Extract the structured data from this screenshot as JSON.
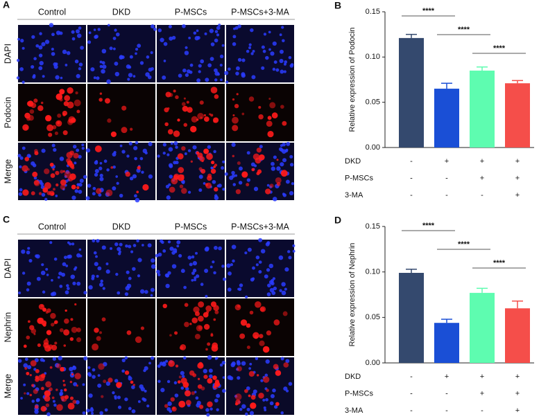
{
  "panels": [
    {
      "label": "A",
      "columns": [
        "Control",
        "DKD",
        "P-MSCs",
        "P-MSCs+3-MA"
      ],
      "rows": [
        "DAPI",
        "Podocin",
        "Merge"
      ]
    },
    {
      "label": "C",
      "columns": [
        "Control",
        "DKD",
        "P-MSCs",
        "P-MSCs+3-MA"
      ],
      "rows": [
        "DAPI",
        "Nephrin",
        "Merge"
      ]
    }
  ],
  "chart_data": [
    {
      "type": "bar",
      "panel_label": "B",
      "ylabel": "Relative expression of Podocin",
      "categories": [
        null,
        null,
        null,
        null
      ],
      "values": [
        0.121,
        0.065,
        0.085,
        0.071
      ],
      "errors": [
        0.004,
        0.006,
        0.004,
        0.003
      ],
      "colors": [
        "#34496e",
        "#1a4fd6",
        "#5efcb0",
        "#f54e4a"
      ],
      "ylim": [
        0,
        0.15
      ],
      "yticks": [
        {
          "value": 0,
          "label": "0.00"
        },
        {
          "value": 0.05,
          "label": "0.05"
        },
        {
          "value": 0.1,
          "label": "0.10"
        },
        {
          "value": 0.15,
          "label": "0.15"
        }
      ],
      "significance": [
        "****",
        "****",
        "****"
      ],
      "conditions": [
        {
          "name": "DKD",
          "signs": [
            "-",
            "+",
            "+",
            "+"
          ]
        },
        {
          "name": "P-MSCs",
          "signs": [
            "-",
            "-",
            "+",
            "+"
          ]
        },
        {
          "name": "3-MA",
          "signs": [
            "-",
            "-",
            "-",
            "+"
          ]
        }
      ]
    },
    {
      "type": "bar",
      "panel_label": "D",
      "ylabel": "Relative expression of Nephrin",
      "categories": [
        null,
        null,
        null,
        null
      ],
      "values": [
        0.099,
        0.044,
        0.077,
        0.06
      ],
      "errors": [
        0.004,
        0.004,
        0.005,
        0.008
      ],
      "colors": [
        "#34496e",
        "#1a4fd6",
        "#5efcb0",
        "#f54e4a"
      ],
      "ylim": [
        0,
        0.15
      ],
      "yticks": [
        {
          "value": 0,
          "label": "0.00"
        },
        {
          "value": 0.05,
          "label": "0.05"
        },
        {
          "value": 0.1,
          "label": "0.10"
        },
        {
          "value": 0.15,
          "label": "0.15"
        }
      ],
      "significance": [
        "****",
        "****",
        "****"
      ],
      "conditions": [
        {
          "name": "DKD",
          "signs": [
            "-",
            "+",
            "+",
            "+"
          ]
        },
        {
          "name": "P-MSCs",
          "signs": [
            "-",
            "-",
            "+",
            "+"
          ]
        },
        {
          "name": "3-MA",
          "signs": [
            "-",
            "-",
            "-",
            "+"
          ]
        }
      ]
    }
  ]
}
